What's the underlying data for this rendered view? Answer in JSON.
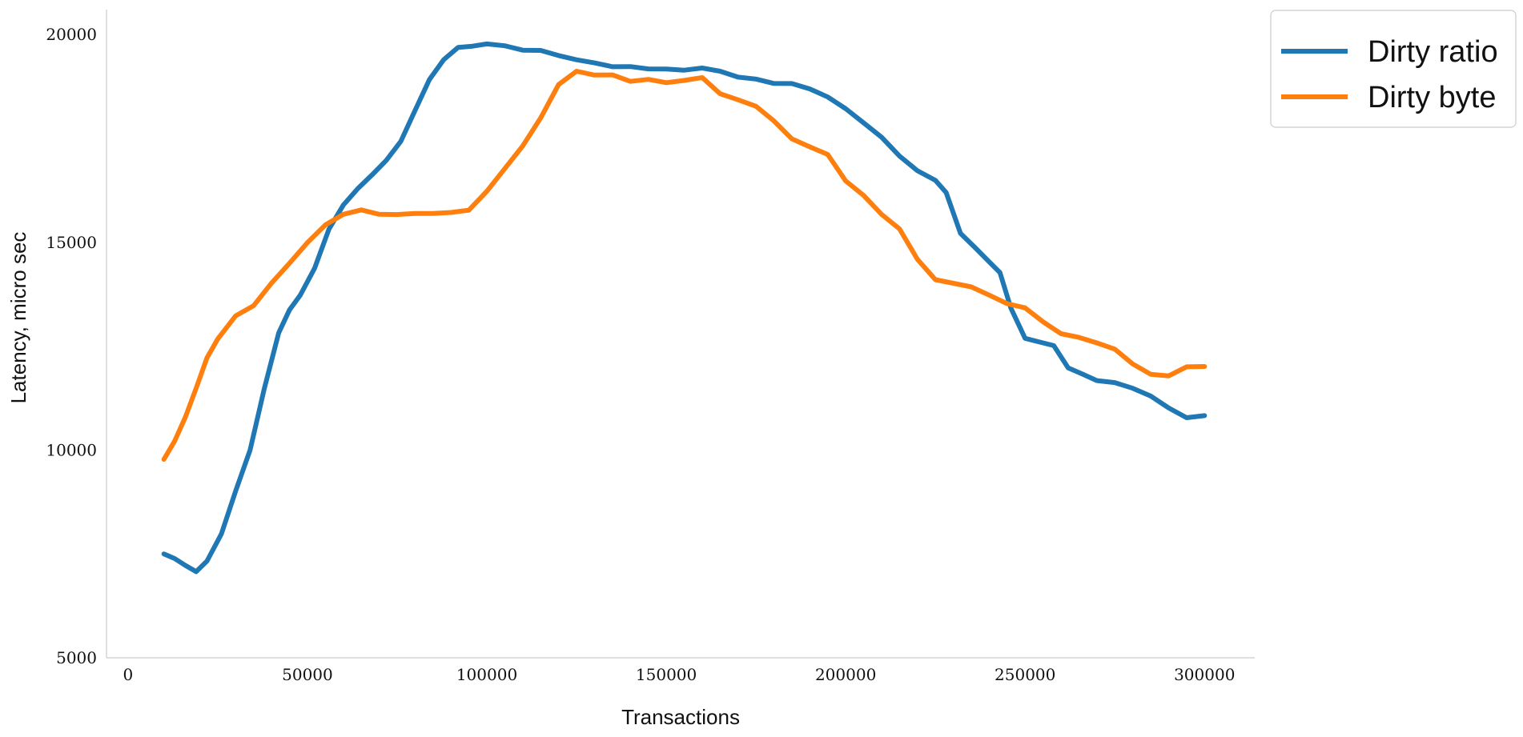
{
  "chart_data": {
    "type": "line",
    "title": "",
    "xlabel": "Transactions",
    "ylabel": "Latency, micro sec",
    "xlim": [
      -6000,
      314000
    ],
    "ylim": [
      5000,
      20600
    ],
    "x_ticks": [
      0,
      50000,
      100000,
      150000,
      200000,
      250000,
      300000
    ],
    "x_tick_labels": [
      "0",
      "50000",
      "100000",
      "150000",
      "200000",
      "250000",
      "300000"
    ],
    "y_ticks": [
      5000,
      10000,
      15000,
      20000
    ],
    "y_tick_labels": [
      "5000",
      "10000",
      "15000",
      "20000"
    ],
    "grid": false,
    "legend_position": "top-right-outside",
    "series": [
      {
        "name": "Dirty ratio",
        "color": "#1f77b4",
        "x": [
          10000,
          13000,
          16000,
          19000,
          22000,
          26000,
          30000,
          34000,
          38000,
          42000,
          45000,
          48000,
          52000,
          56000,
          60000,
          64000,
          68000,
          72000,
          76000,
          80000,
          84000,
          88000,
          92000,
          96000,
          100000,
          105000,
          110000,
          115000,
          120000,
          125000,
          130000,
          135000,
          140000,
          145000,
          150000,
          155000,
          160000,
          165000,
          170000,
          175000,
          180000,
          185000,
          190000,
          195000,
          200000,
          205000,
          210000,
          215000,
          220000,
          225000,
          228000,
          232000,
          236000,
          240000,
          243000,
          246000,
          250000,
          254000,
          258000,
          262000,
          266000,
          270000,
          275000,
          280000,
          285000,
          290000,
          295000,
          300000
        ],
        "values": [
          7500,
          7400,
          7200,
          7100,
          7300,
          8000,
          9000,
          10000,
          11500,
          12800,
          13400,
          13700,
          14400,
          15300,
          15900,
          16300,
          16600,
          17000,
          17400,
          18200,
          18900,
          19400,
          19700,
          19700,
          19800,
          19700,
          19650,
          19600,
          19500,
          19400,
          19300,
          19250,
          19200,
          19200,
          19150,
          19150,
          19200,
          19100,
          19000,
          18900,
          18850,
          18800,
          18700,
          18500,
          18200,
          17900,
          17500,
          17100,
          16700,
          16500,
          16200,
          15200,
          14900,
          14500,
          14300,
          13400,
          12700,
          12600,
          12500,
          12000,
          11800,
          11700,
          11600,
          11500,
          11300,
          11000,
          10800,
          10800
        ]
      },
      {
        "name": "Dirty byte",
        "color": "#ff7f0e",
        "x": [
          10000,
          13000,
          16000,
          19000,
          22000,
          25000,
          30000,
          35000,
          40000,
          45000,
          50000,
          55000,
          60000,
          65000,
          70000,
          75000,
          80000,
          85000,
          90000,
          95000,
          100000,
          105000,
          110000,
          115000,
          120000,
          125000,
          130000,
          135000,
          140000,
          145000,
          150000,
          155000,
          160000,
          165000,
          170000,
          175000,
          180000,
          185000,
          190000,
          195000,
          200000,
          205000,
          210000,
          215000,
          220000,
          225000,
          230000,
          235000,
          240000,
          245000,
          250000,
          255000,
          260000,
          265000,
          270000,
          275000,
          280000,
          285000,
          290000,
          295000,
          300000
        ],
        "values": [
          9800,
          10200,
          10800,
          11500,
          12200,
          12700,
          13200,
          13500,
          14000,
          14500,
          15000,
          15400,
          15700,
          15750,
          15700,
          15650,
          15700,
          15700,
          15700,
          15800,
          16200,
          16800,
          17300,
          18000,
          18800,
          19100,
          19050,
          19000,
          18900,
          18900,
          18850,
          18900,
          18950,
          18600,
          18400,
          18300,
          17900,
          17500,
          17300,
          17100,
          16500,
          16100,
          15700,
          15300,
          14600,
          14100,
          14000,
          13950,
          13700,
          13550,
          13400,
          13100,
          12800,
          12700,
          12600,
          12400,
          12100,
          11800,
          11800,
          12000,
          12000
        ]
      }
    ]
  }
}
